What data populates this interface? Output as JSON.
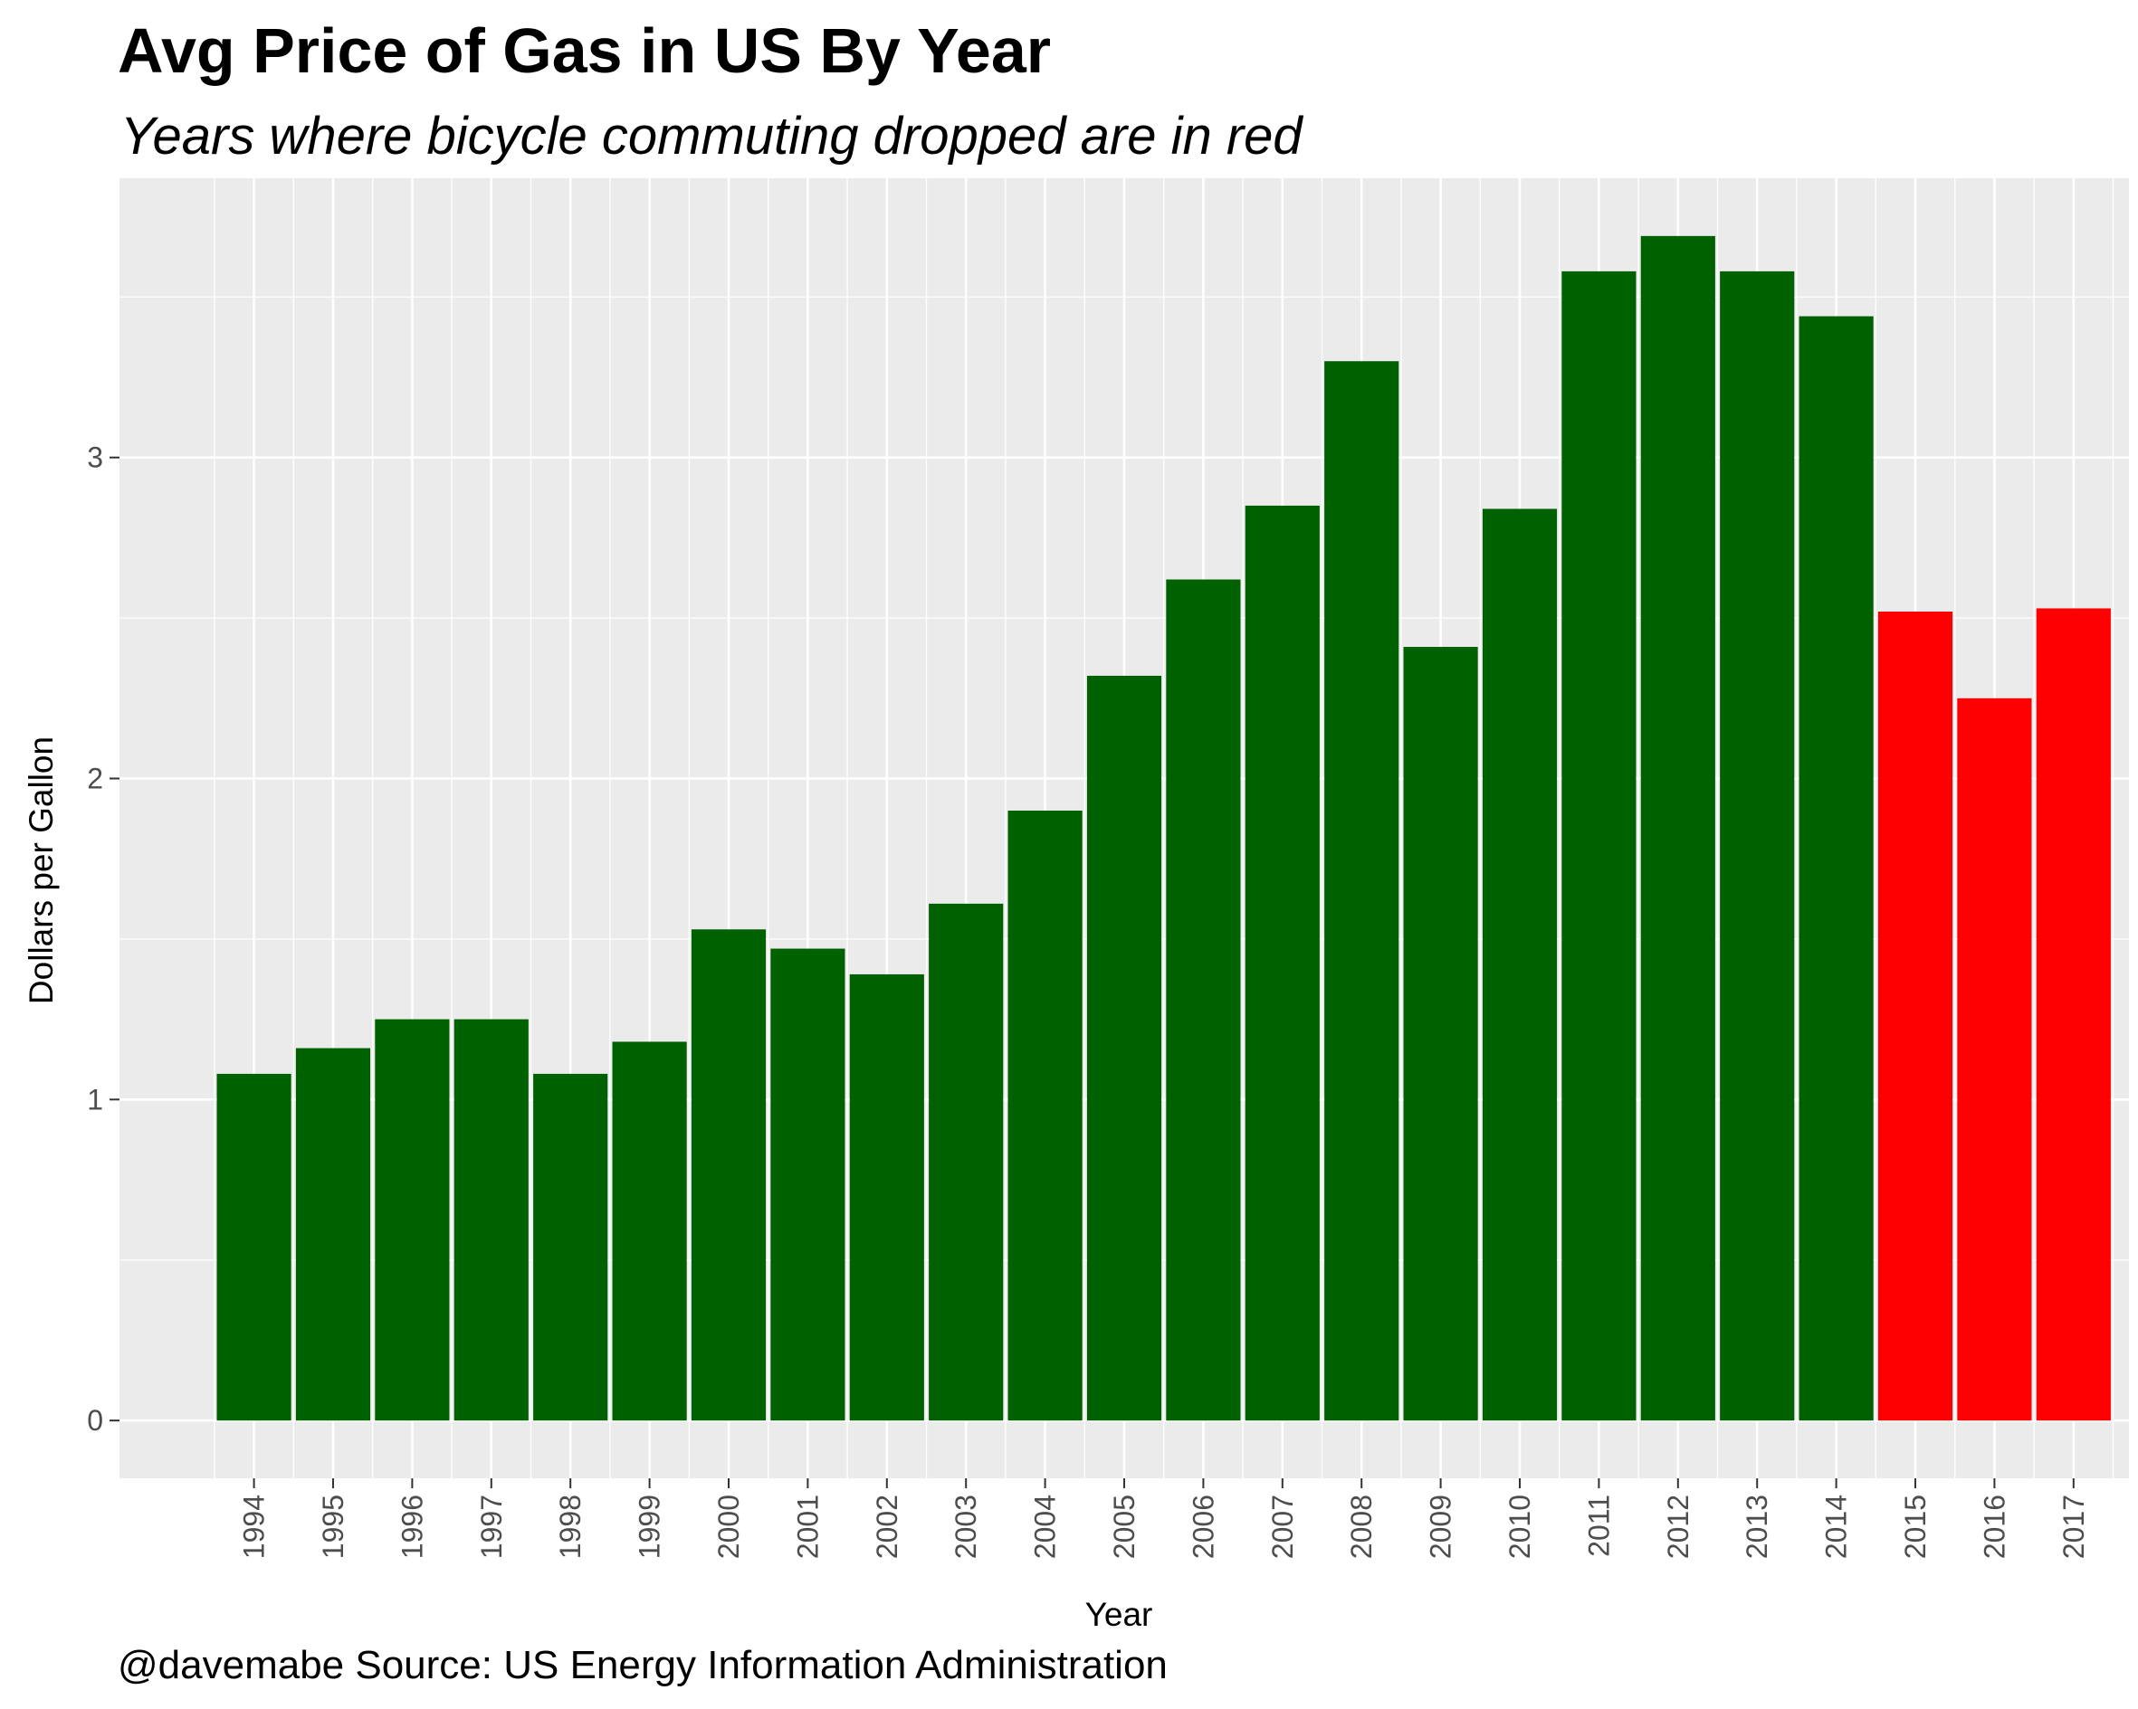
{
  "chart_data": {
    "type": "bar",
    "title": "Avg Price of Gas in US By Year",
    "subtitle": "Years where bicycle commuting dropped are in red",
    "xlabel": "Year",
    "ylabel": "Dollars per Gallon",
    "caption": "@davemabe Source: US Energy Information Administration",
    "categories": [
      "1994",
      "1995",
      "1996",
      "1997",
      "1998",
      "1999",
      "2000",
      "2001",
      "2002",
      "2003",
      "2004",
      "2005",
      "2006",
      "2007",
      "2008",
      "2009",
      "2010",
      "2011",
      "2012",
      "2013",
      "2014",
      "2015",
      "2016",
      "2017"
    ],
    "values": [
      1.08,
      1.16,
      1.25,
      1.25,
      1.08,
      1.18,
      1.53,
      1.47,
      1.39,
      1.61,
      1.9,
      2.32,
      2.62,
      2.85,
      3.3,
      2.41,
      2.84,
      3.58,
      3.69,
      3.58,
      3.44,
      2.52,
      2.25,
      2.53
    ],
    "bicycle_commuting_dropped": [
      false,
      false,
      false,
      false,
      false,
      false,
      false,
      false,
      false,
      false,
      false,
      false,
      false,
      false,
      false,
      false,
      false,
      false,
      false,
      false,
      false,
      true,
      true,
      true
    ],
    "ylim": [
      -0.18,
      3.87
    ],
    "yticks": [
      0,
      1,
      2,
      3
    ],
    "grid": true,
    "colors": {
      "bar": "#006100",
      "highlight": "#ff0000",
      "panel": "#ebebeb",
      "grid": "#ffffff",
      "text": "#000000",
      "tick_text": "#4d4d4d",
      "tick": "#333333"
    }
  }
}
